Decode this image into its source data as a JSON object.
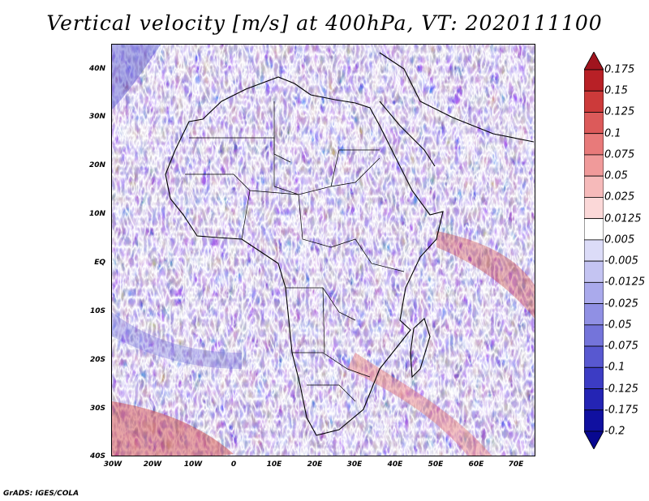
{
  "title": "Vertical velocity [m/s] at 400hPa, VT: 2020111100",
  "credit": "GrADS: IGES/COLA",
  "lat_labels": [
    "40N",
    "30N",
    "20N",
    "10N",
    "EQ",
    "10S",
    "20S",
    "30S",
    "40S"
  ],
  "lon_labels": [
    "30W",
    "20W",
    "10W",
    "0",
    "10E",
    "20E",
    "30E",
    "40E",
    "50E",
    "60E",
    "70E"
  ],
  "colorbar": {
    "levels": [
      "0.175",
      "0.15",
      "0.125",
      "0.1",
      "0.075",
      "0.05",
      "0.025",
      "0.0125",
      "0.005",
      "-0.005",
      "-0.0125",
      "-0.025",
      "-0.05",
      "-0.075",
      "-0.1",
      "-0.125",
      "-0.175",
      "-0.2"
    ],
    "colors": [
      "#a0141e",
      "#b82026",
      "#cc3a3a",
      "#dc5a5a",
      "#e87a7a",
      "#f09a9a",
      "#f6baba",
      "#fbd8d8",
      "#ffffff",
      "#dcdcf8",
      "#c4c4f2",
      "#aaaaec",
      "#9090e4",
      "#7474da",
      "#5858d0",
      "#3c3cc4",
      "#2424b4",
      "#1010a0",
      "#080890"
    ]
  }
}
